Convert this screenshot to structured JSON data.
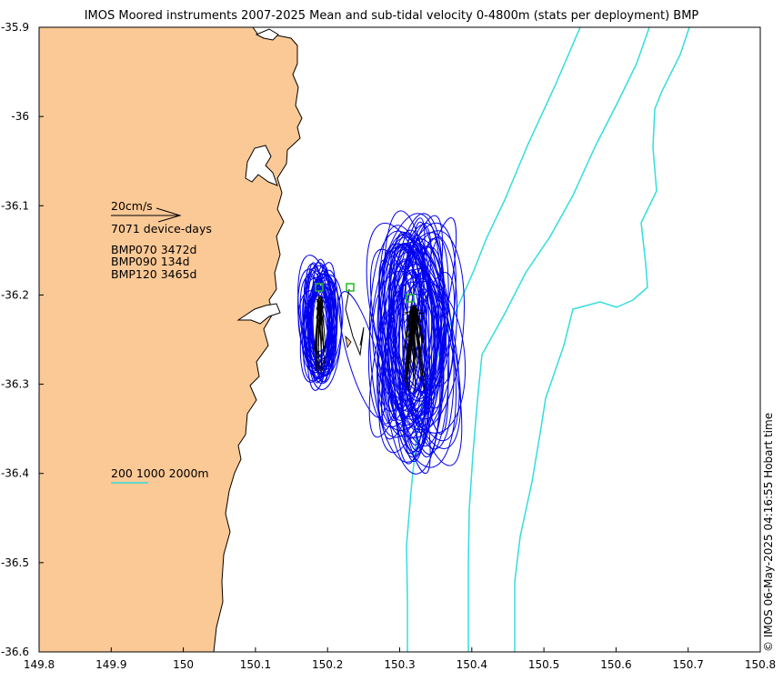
{
  "title": "IMOS Moored instruments 2007-2025 Mean and sub-tidal velocity 0-4800m (stats per deployment) BMP",
  "timestamp": "© IMOS 06-May-2025 04:16:55 Hobart time",
  "annotations": {
    "scale_label": "20cm/s",
    "device_days": "7071 device-days",
    "moorings": [
      "BMP070 3472d",
      "BMP090 134d",
      "BMP120 3465d"
    ],
    "isobath_label": "200 1000 2000m"
  },
  "colors": {
    "land": "#fbc996",
    "coastline": "#000000",
    "isobath": "#33dddd",
    "ellipse": "#0000ee",
    "mooring_marker": "#22bb22",
    "mean_vector": "#000000"
  },
  "chart_data": {
    "type": "map",
    "xlim": [
      149.8,
      150.8
    ],
    "ylim": [
      -36.6,
      -35.9
    ],
    "xticks": [
      "149.8",
      "149.9",
      "150",
      "150.1",
      "150.2",
      "150.3",
      "150.4",
      "150.5",
      "150.6",
      "150.7",
      "150.8"
    ],
    "yticks": [
      "-35.9",
      "-36",
      "-36.1",
      "-36.2",
      "-36.3",
      "-36.4",
      "-36.5",
      "-36.6"
    ],
    "moorings": [
      {
        "name": "BMP070",
        "lon": 150.19,
        "lat": -36.193,
        "days": 3472
      },
      {
        "name": "BMP090",
        "lon": 150.232,
        "lat": -36.193,
        "days": 134
      },
      {
        "name": "BMP120",
        "lon": 150.315,
        "lat": -36.205,
        "days": 3465
      }
    ],
    "isobaths_m": [
      200,
      1000,
      2000
    ]
  }
}
